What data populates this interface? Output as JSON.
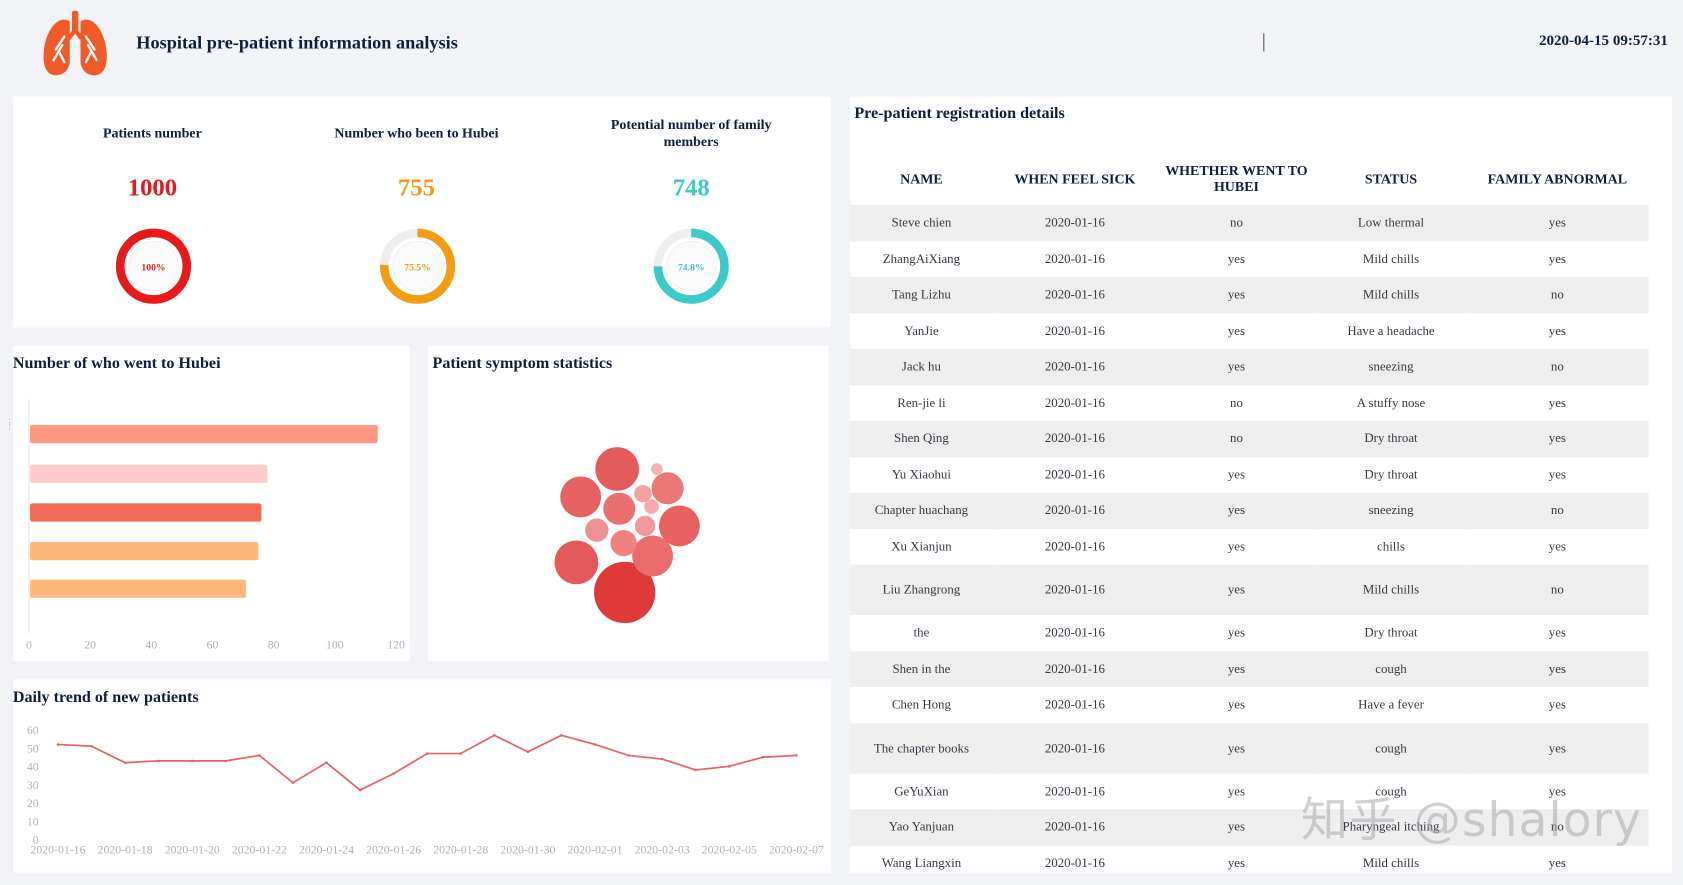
{
  "header": {
    "title": "Hospital pre-patient information analysis",
    "datetime": "2020-04-15 09:57:31",
    "logo_color": "#f05a28"
  },
  "kpis": [
    {
      "label": "Patients number",
      "value": "1000",
      "percent_label": "100%",
      "percent": 100,
      "color": "#e8191a"
    },
    {
      "label": "Number who been to Hubei",
      "value": "755",
      "percent_label": "75.5%",
      "percent": 75.5,
      "color": "#f39c12"
    },
    {
      "label": "Potential number of family members",
      "value": "748",
      "percent_label": "74.8%",
      "percent": 74.8,
      "color": "#3cc9c9"
    }
  ],
  "hubei_chart": {
    "title": "Number of who went to Hubei",
    "chart_data": {
      "type": "bar",
      "orientation": "horizontal",
      "categories": [
        "",
        "",
        "",
        "",
        ""
      ],
      "values": [
        114,
        78,
        76,
        75,
        71
      ],
      "colors": [
        "#ff9682",
        "#ffcccc",
        "#f26a56",
        "#ffb879",
        "#ffb879"
      ],
      "xlim": [
        0,
        120
      ],
      "ticks": [
        "0",
        "20",
        "40",
        "60",
        "80",
        "100",
        "120"
      ]
    }
  },
  "symptom_chart": {
    "title": "Patient symptom statistics",
    "chart_data": {
      "type": "bubble",
      "values": [
        42,
        30,
        30,
        28,
        28,
        28,
        22,
        22,
        18,
        16,
        14,
        12,
        10,
        8
      ],
      "colors": [
        "#de3a3a",
        "#e45a5a",
        "#e35c5c",
        "#e86060",
        "#e66262",
        "#e96b6b",
        "#ea7070",
        "#ec7777",
        "#ef8080",
        "#f09090",
        "#f29a9a",
        "#f3a0a0",
        "#f4a8a8",
        "#f6b2b2"
      ]
    }
  },
  "trend_chart": {
    "title": "Daily trend of new patients",
    "chart_data": {
      "type": "line",
      "color": "#e66262",
      "x": [
        "2020-01-16",
        "2020-01-17",
        "2020-01-18",
        "2020-01-19",
        "2020-01-20",
        "2020-01-21",
        "2020-01-22",
        "2020-01-23",
        "2020-01-24",
        "2020-01-25",
        "2020-01-26",
        "2020-01-27",
        "2020-01-28",
        "2020-01-29",
        "2020-01-30",
        "2020-01-31",
        "2020-02-01",
        "2020-02-02",
        "2020-02-03",
        "2020-02-04",
        "2020-02-05",
        "2020-02-06",
        "2020-02-07"
      ],
      "values": [
        52,
        51,
        42,
        43,
        43,
        43,
        46,
        31,
        42,
        27,
        36,
        47,
        47,
        57,
        48,
        57,
        52,
        46,
        44,
        38,
        40,
        45,
        46
      ],
      "ylim": [
        0,
        60
      ],
      "yticks": [
        "0",
        "10",
        "20",
        "30",
        "40",
        "50",
        "60"
      ],
      "xticks": [
        "2020-01-16",
        "2020-01-18",
        "2020-01-20",
        "2020-01-22",
        "2020-01-24",
        "2020-01-26",
        "2020-01-28",
        "2020-01-30",
        "2020-02-01",
        "2020-02-03",
        "2020-02-05",
        "2020-02-07"
      ]
    }
  },
  "registration": {
    "title": "Pre-patient registration details",
    "columns": [
      "NAME",
      "WHEN FEEL SICK",
      "WHETHER WENT TO HUBEI",
      "STATUS",
      "FAMILY ABNORMAL"
    ],
    "rows": [
      [
        "Steve chien",
        "2020-01-16",
        "no",
        "Low thermal",
        "yes"
      ],
      [
        "ZhangAiXiang",
        "2020-01-16",
        "yes",
        "Mild chills",
        "yes"
      ],
      [
        "Tang Lizhu",
        "2020-01-16",
        "yes",
        "Mild chills",
        "no"
      ],
      [
        "YanJie",
        "2020-01-16",
        "yes",
        "Have a headache",
        "yes"
      ],
      [
        "Jack hu",
        "2020-01-16",
        "yes",
        "sneezing",
        "no"
      ],
      [
        "Ren-jie li",
        "2020-01-16",
        "no",
        "A stuffy nose",
        "yes"
      ],
      [
        "Shen Qing",
        "2020-01-16",
        "no",
        "Dry throat",
        "yes"
      ],
      [
        "Yu Xiaohui",
        "2020-01-16",
        "yes",
        "Dry throat",
        "yes"
      ],
      [
        "Chapter huachang",
        "2020-01-16",
        "yes",
        "sneezing",
        "no"
      ],
      [
        "Xu Xianjun",
        "2020-01-16",
        "yes",
        "chills",
        "yes"
      ],
      [
        "Liu Zhangrong",
        "2020-01-16",
        "yes",
        "Mild chills",
        "no"
      ],
      [
        "the",
        "2020-01-16",
        "yes",
        "Dry throat",
        "yes"
      ],
      [
        "Shen in the",
        "2020-01-16",
        "yes",
        "cough",
        "yes"
      ],
      [
        "Chen Hong",
        "2020-01-16",
        "yes",
        "Have a fever",
        "yes"
      ],
      [
        "The chapter books",
        "2020-01-16",
        "yes",
        "cough",
        "yes"
      ],
      [
        "GeYuXian",
        "2020-01-16",
        "yes",
        "cough",
        "yes"
      ],
      [
        "Yao Yanjuan",
        "2020-01-16",
        "yes",
        "Pharyngeal itching",
        "no"
      ],
      [
        "Wang Liangxin",
        "2020-01-16",
        "yes",
        "Mild chills",
        "yes"
      ]
    ]
  },
  "watermark": "知乎 @shalory"
}
